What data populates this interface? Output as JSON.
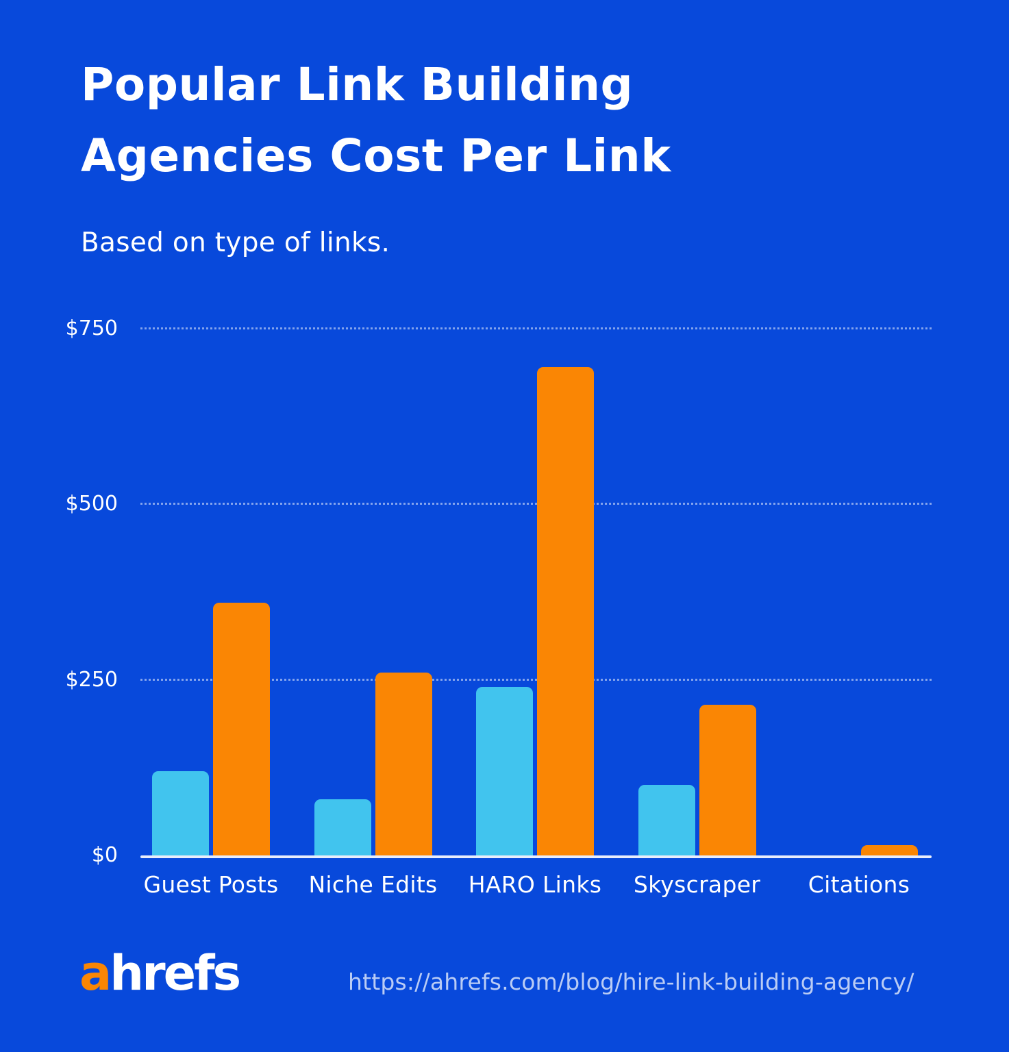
{
  "header": {
    "title_line_1": "Popular Link Building",
    "title_line_2": "Agencies Cost Per Link",
    "subtitle": "Based on type of links."
  },
  "footer": {
    "logo_a": "a",
    "logo_rest": "hrefs",
    "url": "https://ahrefs.com/blog/hire-link-building-agency/"
  },
  "colors": {
    "background": "#0849db",
    "bar_blue": "#41c4ee",
    "bar_orange": "#fa8604",
    "text": "#ffffff",
    "axis_line": "#e8edfb",
    "gridline": "rgba(255,255,255,0.5)",
    "url_text": "rgba(255,255,255,0.72)",
    "logo_orange": "#fa8604"
  },
  "chart_data": {
    "type": "bar",
    "title": "Popular Link Building Agencies Cost Per Link",
    "subtitle": "Based on type of links.",
    "categories": [
      "Guest Posts",
      "Niche Edits",
      "HARO Links",
      "Skyscraper",
      "Citations"
    ],
    "series": [
      {
        "name": "blue",
        "color": "#41c4ee",
        "values": [
          120,
          80,
          240,
          100,
          0
        ]
      },
      {
        "name": "orange",
        "color": "#fa8604",
        "values": [
          360,
          260,
          695,
          215,
          15
        ]
      }
    ],
    "xlabel": "",
    "ylabel": "",
    "ylim": [
      0,
      750
    ],
    "yticks": [
      {
        "label": "$0",
        "value": 0
      },
      {
        "label": "$250",
        "value": 250
      },
      {
        "label": "$500",
        "value": 500
      },
      {
        "label": "$750",
        "value": 750
      }
    ],
    "grid": "horizontal-dotted",
    "legend": "none"
  }
}
